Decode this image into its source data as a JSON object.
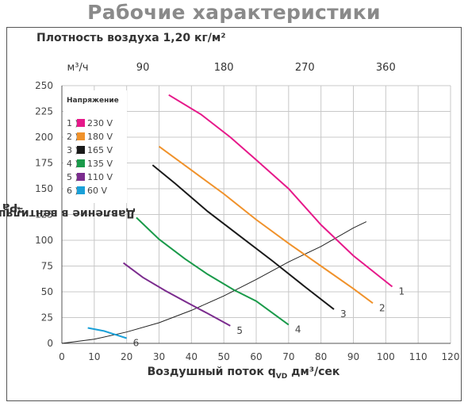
{
  "title": "Рабочие характеристики",
  "density_label": "Плотность воздуха 1,20 кг/м²",
  "chart_data": {
    "type": "line",
    "xlabel_main": "Воздушный поток q",
    "xlabel_sub": "VD",
    "xlabel_unit": "дм³/сек",
    "ylabel_main": "Давление в вентиляционной системе p",
    "ylabel_sub": "tf",
    "ylabel_unit": " Pa",
    "xlim": [
      0,
      120
    ],
    "ylim": [
      0,
      250
    ],
    "x_ticks": [
      0,
      10,
      20,
      30,
      40,
      50,
      60,
      70,
      80,
      90,
      100,
      110,
      120
    ],
    "y_ticks": [
      0,
      25,
      50,
      75,
      100,
      125,
      150,
      175,
      200,
      225,
      250
    ],
    "top_axis": {
      "unit_label": "м³/ч",
      "ticks": [
        {
          "label": "90",
          "x": 25
        },
        {
          "label": "180",
          "x": 50
        },
        {
          "label": "270",
          "x": 75
        },
        {
          "label": "360",
          "x": 100
        }
      ]
    },
    "grid": true,
    "legend": {
      "title": "Напряжение",
      "placement": "top-left",
      "items": [
        {
          "num": "1 )",
          "label": "230 V",
          "color": "#e6198a"
        },
        {
          "num": "2 )",
          "label": "180 V",
          "color": "#f0922b"
        },
        {
          "num": "3 )",
          "label": "165 V",
          "color": "#1a1a1a"
        },
        {
          "num": "4 )",
          "label": "135 V",
          "color": "#1a9a4a"
        },
        {
          "num": "5 )",
          "label": "110 V",
          "color": "#7b2c8e"
        },
        {
          "num": "6 )",
          "label": " 60 V",
          "color": "#1aa0d8"
        }
      ]
    },
    "series": [
      {
        "label": "1",
        "color": "#e6198a",
        "x": [
          33,
          43,
          52,
          60,
          70,
          80,
          90,
          102
        ],
        "y": [
          241,
          222,
          200,
          178,
          150,
          115,
          85,
          55
        ]
      },
      {
        "label": "2",
        "color": "#f0922b",
        "x": [
          30,
          40,
          50,
          60,
          70,
          80,
          90,
          96
        ],
        "y": [
          191,
          168,
          145,
          120,
          97,
          75,
          53,
          39
        ]
      },
      {
        "label": "3",
        "color": "#1a1a1a",
        "x": [
          28,
          35,
          45,
          55,
          65,
          75,
          84
        ],
        "y": [
          173,
          155,
          128,
          104,
          80,
          55,
          33
        ]
      },
      {
        "label": "4",
        "color": "#1a9a4a",
        "x": [
          23,
          30,
          38,
          45,
          53,
          60,
          70
        ],
        "y": [
          122,
          101,
          82,
          67,
          52,
          41,
          18
        ]
      },
      {
        "label": "5",
        "color": "#7b2c8e",
        "x": [
          19,
          25,
          32,
          39,
          45,
          52
        ],
        "y": [
          78,
          64,
          51,
          39,
          29,
          17
        ]
      },
      {
        "label": "6",
        "color": "#1aa0d8",
        "x": [
          8,
          13,
          16,
          20
        ],
        "y": [
          15,
          12,
          9,
          5
        ]
      }
    ],
    "system_curve": {
      "color": "#222222",
      "x": [
        0,
        10,
        20,
        30,
        40,
        50,
        60,
        70,
        80,
        90,
        94
      ],
      "y": [
        0,
        4,
        11,
        20,
        32,
        46,
        62,
        79,
        94,
        112,
        118
      ]
    }
  }
}
